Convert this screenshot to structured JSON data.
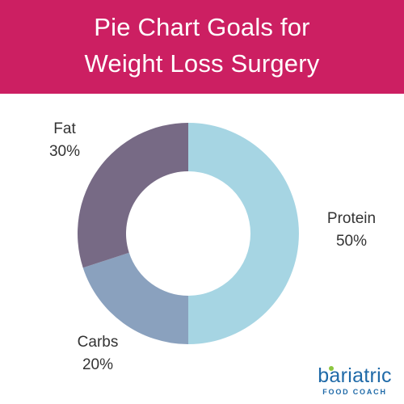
{
  "header": {
    "title_line1": "Pie Chart Goals for",
    "title_line2": "Weight Loss Surgery",
    "background": "#cc1f62"
  },
  "chart_data": {
    "type": "pie",
    "style": "donut",
    "title": "Pie Chart Goals for Weight Loss Surgery",
    "slices": [
      {
        "label": "Protein",
        "value": 50,
        "display": "50%",
        "color": "#a6d5e3"
      },
      {
        "label": "Carbs",
        "value": 20,
        "display": "20%",
        "color": "#8aa1be"
      },
      {
        "label": "Fat",
        "value": 30,
        "display": "30%",
        "color": "#776a85"
      }
    ],
    "start": "top",
    "direction": "clockwise",
    "legend": "none"
  },
  "logo": {
    "name": "bariatric",
    "subtitle": "FOOD COACH",
    "color": "#1f6aa8",
    "accent": "#8cc63f"
  }
}
